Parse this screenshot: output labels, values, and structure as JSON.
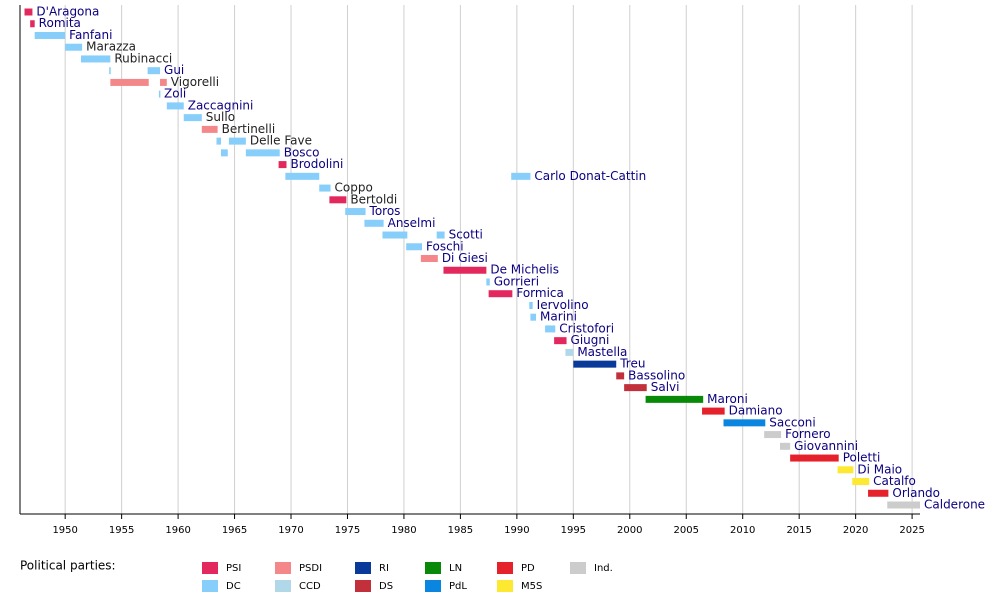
{
  "chart_data": {
    "type": "timeline",
    "xlim": [
      1946,
      2025.7
    ],
    "xticks": [
      1950,
      1955,
      1960,
      1965,
      1970,
      1975,
      1980,
      1985,
      1990,
      1995,
      2000,
      2005,
      2010,
      2015,
      2020,
      2025
    ],
    "grid": true,
    "legend_title": "Political parties:",
    "parties": [
      {
        "name": "PSI",
        "color": "#e3285d"
      },
      {
        "name": "DC",
        "color": "#87cefa"
      },
      {
        "name": "PSDI",
        "color": "#f4878a"
      },
      {
        "name": "CCD",
        "color": "#b0d8e8"
      },
      {
        "name": "RI",
        "color": "#0a3a99"
      },
      {
        "name": "DS",
        "color": "#c1303b"
      },
      {
        "name": "LN",
        "color": "#088a08"
      },
      {
        "name": "PdL",
        "color": "#0a86e0"
      },
      {
        "name": "PD",
        "color": "#e5222c"
      },
      {
        "name": "M5S",
        "color": "#fde931"
      },
      {
        "name": "Ind.",
        "color": "#cccccc"
      }
    ],
    "rows": [
      {
        "name": "D'Aragona",
        "party": "PSI",
        "link": true,
        "segments": [
          {
            "start": 1946.4,
            "end": 1947.1
          }
        ]
      },
      {
        "name": "Romita",
        "party": "PSI",
        "link": true,
        "segments": [
          {
            "start": 1946.9,
            "end": 1947.3
          }
        ]
      },
      {
        "name": "Fanfani",
        "party": "DC",
        "link": true,
        "segments": [
          {
            "start": 1947.3,
            "end": 1950.0
          }
        ]
      },
      {
        "name": "Marazza",
        "party": "DC",
        "link": false,
        "segments": [
          {
            "start": 1950.0,
            "end": 1951.5
          }
        ]
      },
      {
        "name": "Rubinacci",
        "party": "DC",
        "link": false,
        "segments": [
          {
            "start": 1951.4,
            "end": 1954.0
          }
        ]
      },
      {
        "name": "Gui",
        "party": "DC",
        "link": true,
        "segments": [
          {
            "start": 1953.9,
            "end": 1954.0
          },
          {
            "start": 1957.3,
            "end": 1958.4
          }
        ]
      },
      {
        "name": "Vigorelli",
        "party": "PSDI",
        "link": false,
        "segments": [
          {
            "start": 1954.0,
            "end": 1957.4
          },
          {
            "start": 1958.4,
            "end": 1959.0
          }
        ]
      },
      {
        "name": "Zoli",
        "party": "DC",
        "link": true,
        "segments": [
          {
            "start": 1958.3,
            "end": 1958.4
          }
        ]
      },
      {
        "name": "Zaccagnini",
        "party": "DC",
        "link": true,
        "segments": [
          {
            "start": 1959.0,
            "end": 1960.5
          }
        ]
      },
      {
        "name": "Sullo",
        "party": "DC",
        "link": false,
        "segments": [
          {
            "start": 1960.5,
            "end": 1962.1
          }
        ]
      },
      {
        "name": "Bertinelli",
        "party": "PSDI",
        "link": false,
        "segments": [
          {
            "start": 1962.1,
            "end": 1963.5
          }
        ]
      },
      {
        "name": "Delle Fave",
        "party": "DC",
        "link": false,
        "segments": [
          {
            "start": 1963.4,
            "end": 1963.8
          },
          {
            "start": 1964.5,
            "end": 1966.0
          }
        ]
      },
      {
        "name": "Bosco",
        "party": "DC",
        "link": true,
        "segments": [
          {
            "start": 1963.8,
            "end": 1964.4
          },
          {
            "start": 1966.0,
            "end": 1969.0
          }
        ]
      },
      {
        "name": "Brodolini",
        "party": "PSI",
        "link": true,
        "segments": [
          {
            "start": 1968.9,
            "end": 1969.6
          }
        ]
      },
      {
        "name": "Carlo Donat-Cattin",
        "party": "DC",
        "link": true,
        "segments": [
          {
            "start": 1969.5,
            "end": 1972.5
          },
          {
            "start": 1989.5,
            "end": 1991.2
          }
        ]
      },
      {
        "name": "Coppo",
        "party": "DC",
        "link": false,
        "segments": [
          {
            "start": 1972.5,
            "end": 1973.5
          }
        ]
      },
      {
        "name": "Bertoldi",
        "party": "PSI",
        "link": false,
        "segments": [
          {
            "start": 1973.4,
            "end": 1974.9
          }
        ]
      },
      {
        "name": "Toros",
        "party": "DC",
        "link": true,
        "segments": [
          {
            "start": 1974.8,
            "end": 1976.6
          }
        ]
      },
      {
        "name": "Anselmi",
        "party": "DC",
        "link": true,
        "segments": [
          {
            "start": 1976.5,
            "end": 1978.2
          }
        ]
      },
      {
        "name": "Scotti",
        "party": "DC",
        "link": true,
        "segments": [
          {
            "start": 1978.1,
            "end": 1980.3
          },
          {
            "start": 1982.9,
            "end": 1983.6
          }
        ]
      },
      {
        "name": "Foschi",
        "party": "DC",
        "link": true,
        "segments": [
          {
            "start": 1980.2,
            "end": 1981.6
          }
        ]
      },
      {
        "name": "Di Giesi",
        "party": "PSDI",
        "link": true,
        "segments": [
          {
            "start": 1981.5,
            "end": 1983.0
          }
        ]
      },
      {
        "name": "De Michelis",
        "party": "PSI",
        "link": true,
        "segments": [
          {
            "start": 1983.5,
            "end": 1987.3
          }
        ]
      },
      {
        "name": "Gorrieri",
        "party": "DC",
        "link": true,
        "segments": [
          {
            "start": 1987.3,
            "end": 1987.6
          }
        ]
      },
      {
        "name": "Formica",
        "party": "PSI",
        "link": true,
        "segments": [
          {
            "start": 1987.5,
            "end": 1989.6
          }
        ]
      },
      {
        "name": "Iervolino",
        "party": "DC",
        "link": true,
        "segments": [
          {
            "start": 1991.1,
            "end": 1991.4
          }
        ]
      },
      {
        "name": "Marini",
        "party": "DC",
        "link": true,
        "segments": [
          {
            "start": 1991.2,
            "end": 1991.7
          }
        ]
      },
      {
        "name": "Cristofori",
        "party": "DC",
        "link": true,
        "segments": [
          {
            "start": 1992.5,
            "end": 1993.4
          }
        ]
      },
      {
        "name": "Giugni",
        "party": "PSI",
        "link": true,
        "segments": [
          {
            "start": 1993.3,
            "end": 1994.4
          }
        ]
      },
      {
        "name": "Mastella",
        "party": "CCD",
        "link": true,
        "segments": [
          {
            "start": 1994.3,
            "end": 1995.0
          }
        ]
      },
      {
        "name": "Treu",
        "party": "RI",
        "link": true,
        "segments": [
          {
            "start": 1995.0,
            "end": 1998.8
          }
        ]
      },
      {
        "name": "Bassolino",
        "party": "DS",
        "link": true,
        "segments": [
          {
            "start": 1998.8,
            "end": 1999.5
          }
        ]
      },
      {
        "name": "Salvi",
        "party": "DS",
        "link": true,
        "segments": [
          {
            "start": 1999.5,
            "end": 2001.5
          }
        ]
      },
      {
        "name": "Maroni",
        "party": "LN",
        "link": true,
        "segments": [
          {
            "start": 2001.4,
            "end": 2006.5
          }
        ]
      },
      {
        "name": "Damiano",
        "party": "PD",
        "link": true,
        "segments": [
          {
            "start": 2006.4,
            "end": 2008.4
          }
        ]
      },
      {
        "name": "Sacconi",
        "party": "PdL",
        "link": true,
        "segments": [
          {
            "start": 2008.3,
            "end": 2012.0
          }
        ]
      },
      {
        "name": "Fornero",
        "party": "Ind.",
        "link": true,
        "segments": [
          {
            "start": 2011.9,
            "end": 2013.4
          }
        ]
      },
      {
        "name": "Giovannini",
        "party": "Ind.",
        "link": true,
        "segments": [
          {
            "start": 2013.3,
            "end": 2014.2
          }
        ]
      },
      {
        "name": "Poletti",
        "party": "PD",
        "link": true,
        "segments": [
          {
            "start": 2014.2,
            "end": 2018.5
          }
        ]
      },
      {
        "name": "Di Maio",
        "party": "M5S",
        "link": true,
        "segments": [
          {
            "start": 2018.4,
            "end": 2019.8
          }
        ]
      },
      {
        "name": "Catalfo",
        "party": "M5S",
        "link": true,
        "segments": [
          {
            "start": 2019.7,
            "end": 2021.2
          }
        ]
      },
      {
        "name": "Orlando",
        "party": "PD",
        "link": true,
        "segments": [
          {
            "start": 2021.1,
            "end": 2022.9
          }
        ]
      },
      {
        "name": "Calderone",
        "party": "Ind.",
        "link": true,
        "segments": [
          {
            "start": 2022.8,
            "end": 2025.7
          }
        ]
      }
    ]
  }
}
